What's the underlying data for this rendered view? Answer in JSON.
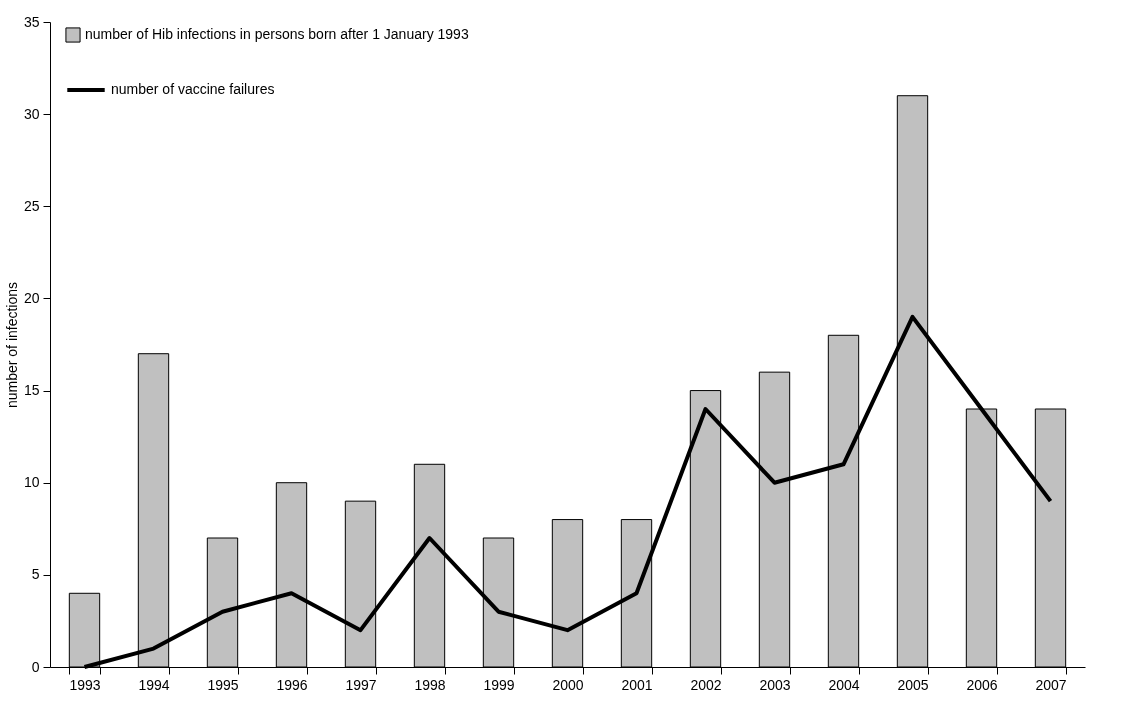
{
  "chart_data": {
    "type": "bar",
    "ylabel": "number of infections",
    "categories": [
      "1993",
      "1994",
      "1995",
      "1996",
      "1997",
      "1998",
      "1999",
      "2000",
      "2001",
      "2002",
      "2003",
      "2004",
      "2005",
      "2006",
      "2007"
    ],
    "series": [
      {
        "name": "number of Hib infections in persons born after 1 January 1993",
        "color": "#c0c0c0",
        "values": [
          4,
          17,
          7,
          10,
          9,
          11,
          7,
          8,
          8,
          15,
          16,
          18,
          31,
          14,
          14
        ]
      },
      {
        "name": "number of vaccine failures",
        "type": "line",
        "color": "#000000",
        "values": [
          0,
          1,
          3,
          4,
          2,
          7,
          3,
          2,
          4,
          14,
          10,
          11,
          19,
          14,
          9
        ]
      }
    ],
    "ylim": [
      0,
      35
    ],
    "yticks": [
      0,
      5,
      10,
      15,
      20,
      25,
      30,
      35
    ],
    "legend": "top left",
    "line_style": "solid"
  }
}
